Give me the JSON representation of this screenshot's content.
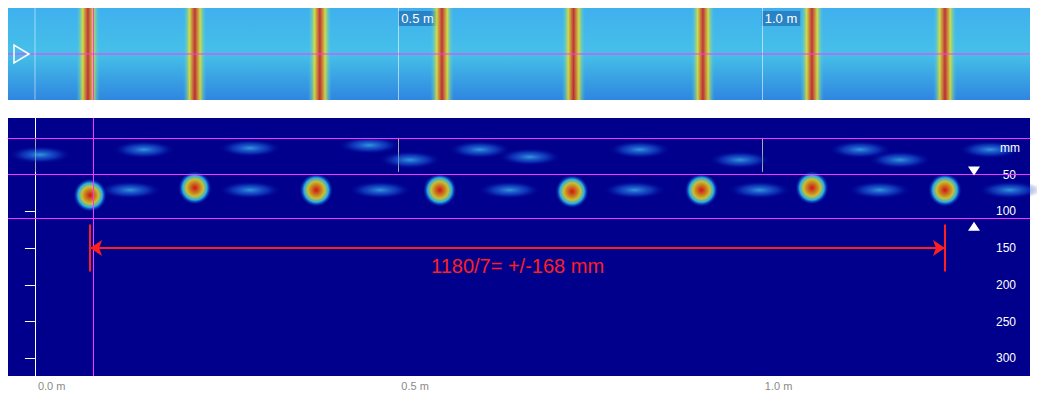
{
  "chart_data": [
    {
      "type": "scatter",
      "marker": "stripe",
      "x": [
        0.073,
        0.22,
        0.392,
        0.56,
        0.741,
        0.919,
        1.069,
        1.252
      ],
      "xlim": [
        -0.037,
        1.369
      ],
      "xticks": [
        {
          "value": 0.5,
          "label": "0.5 m"
        },
        {
          "value": 1.0,
          "label": "1.0 m"
        }
      ],
      "tick_labels": "x",
      "cursor_x": 0.076
    },
    {
      "type": "scatter",
      "marker": "circle",
      "x": [
        0.076,
        0.22,
        0.387,
        0.557,
        0.739,
        0.917,
        1.069,
        1.252
      ],
      "values": [
        78,
        68,
        71,
        71,
        73,
        71,
        68,
        71
      ],
      "reflections": {
        "x": [
          0.007,
          0.15,
          0.296,
          0.46,
          0.516,
          0.612,
          0.681,
          0.832,
          0.97,
          1.135,
          1.19,
          1.314,
          0.131,
          0.296,
          0.475,
          0.653,
          0.825,
          0.997,
          1.162,
          1.341
        ],
        "values": [
          23,
          16,
          14,
          10,
          30,
          16,
          26,
          16,
          30,
          16,
          30,
          16,
          71,
          71,
          71,
          71,
          71,
          71,
          71,
          71
        ]
      },
      "xlim": [
        -0.037,
        1.369
      ],
      "ylim": [
        -27,
        324
      ],
      "xticks": [
        {
          "value": 0,
          "label": "0.0 m"
        },
        {
          "value": 0.5,
          "label": "0.5 m"
        },
        {
          "value": 1,
          "label": "1.0 m"
        }
      ],
      "yticks": [
        50,
        100,
        150,
        200,
        250,
        300
      ],
      "y_label": "mm",
      "cursor_x": 0.076,
      "cursor_depths": [
        0,
        50,
        110
      ],
      "annotation": {
        "text": "1180/7= +/-168 mm",
        "x": [
          0.076,
          1.252
        ],
        "y": 150
      }
    }
  ]
}
